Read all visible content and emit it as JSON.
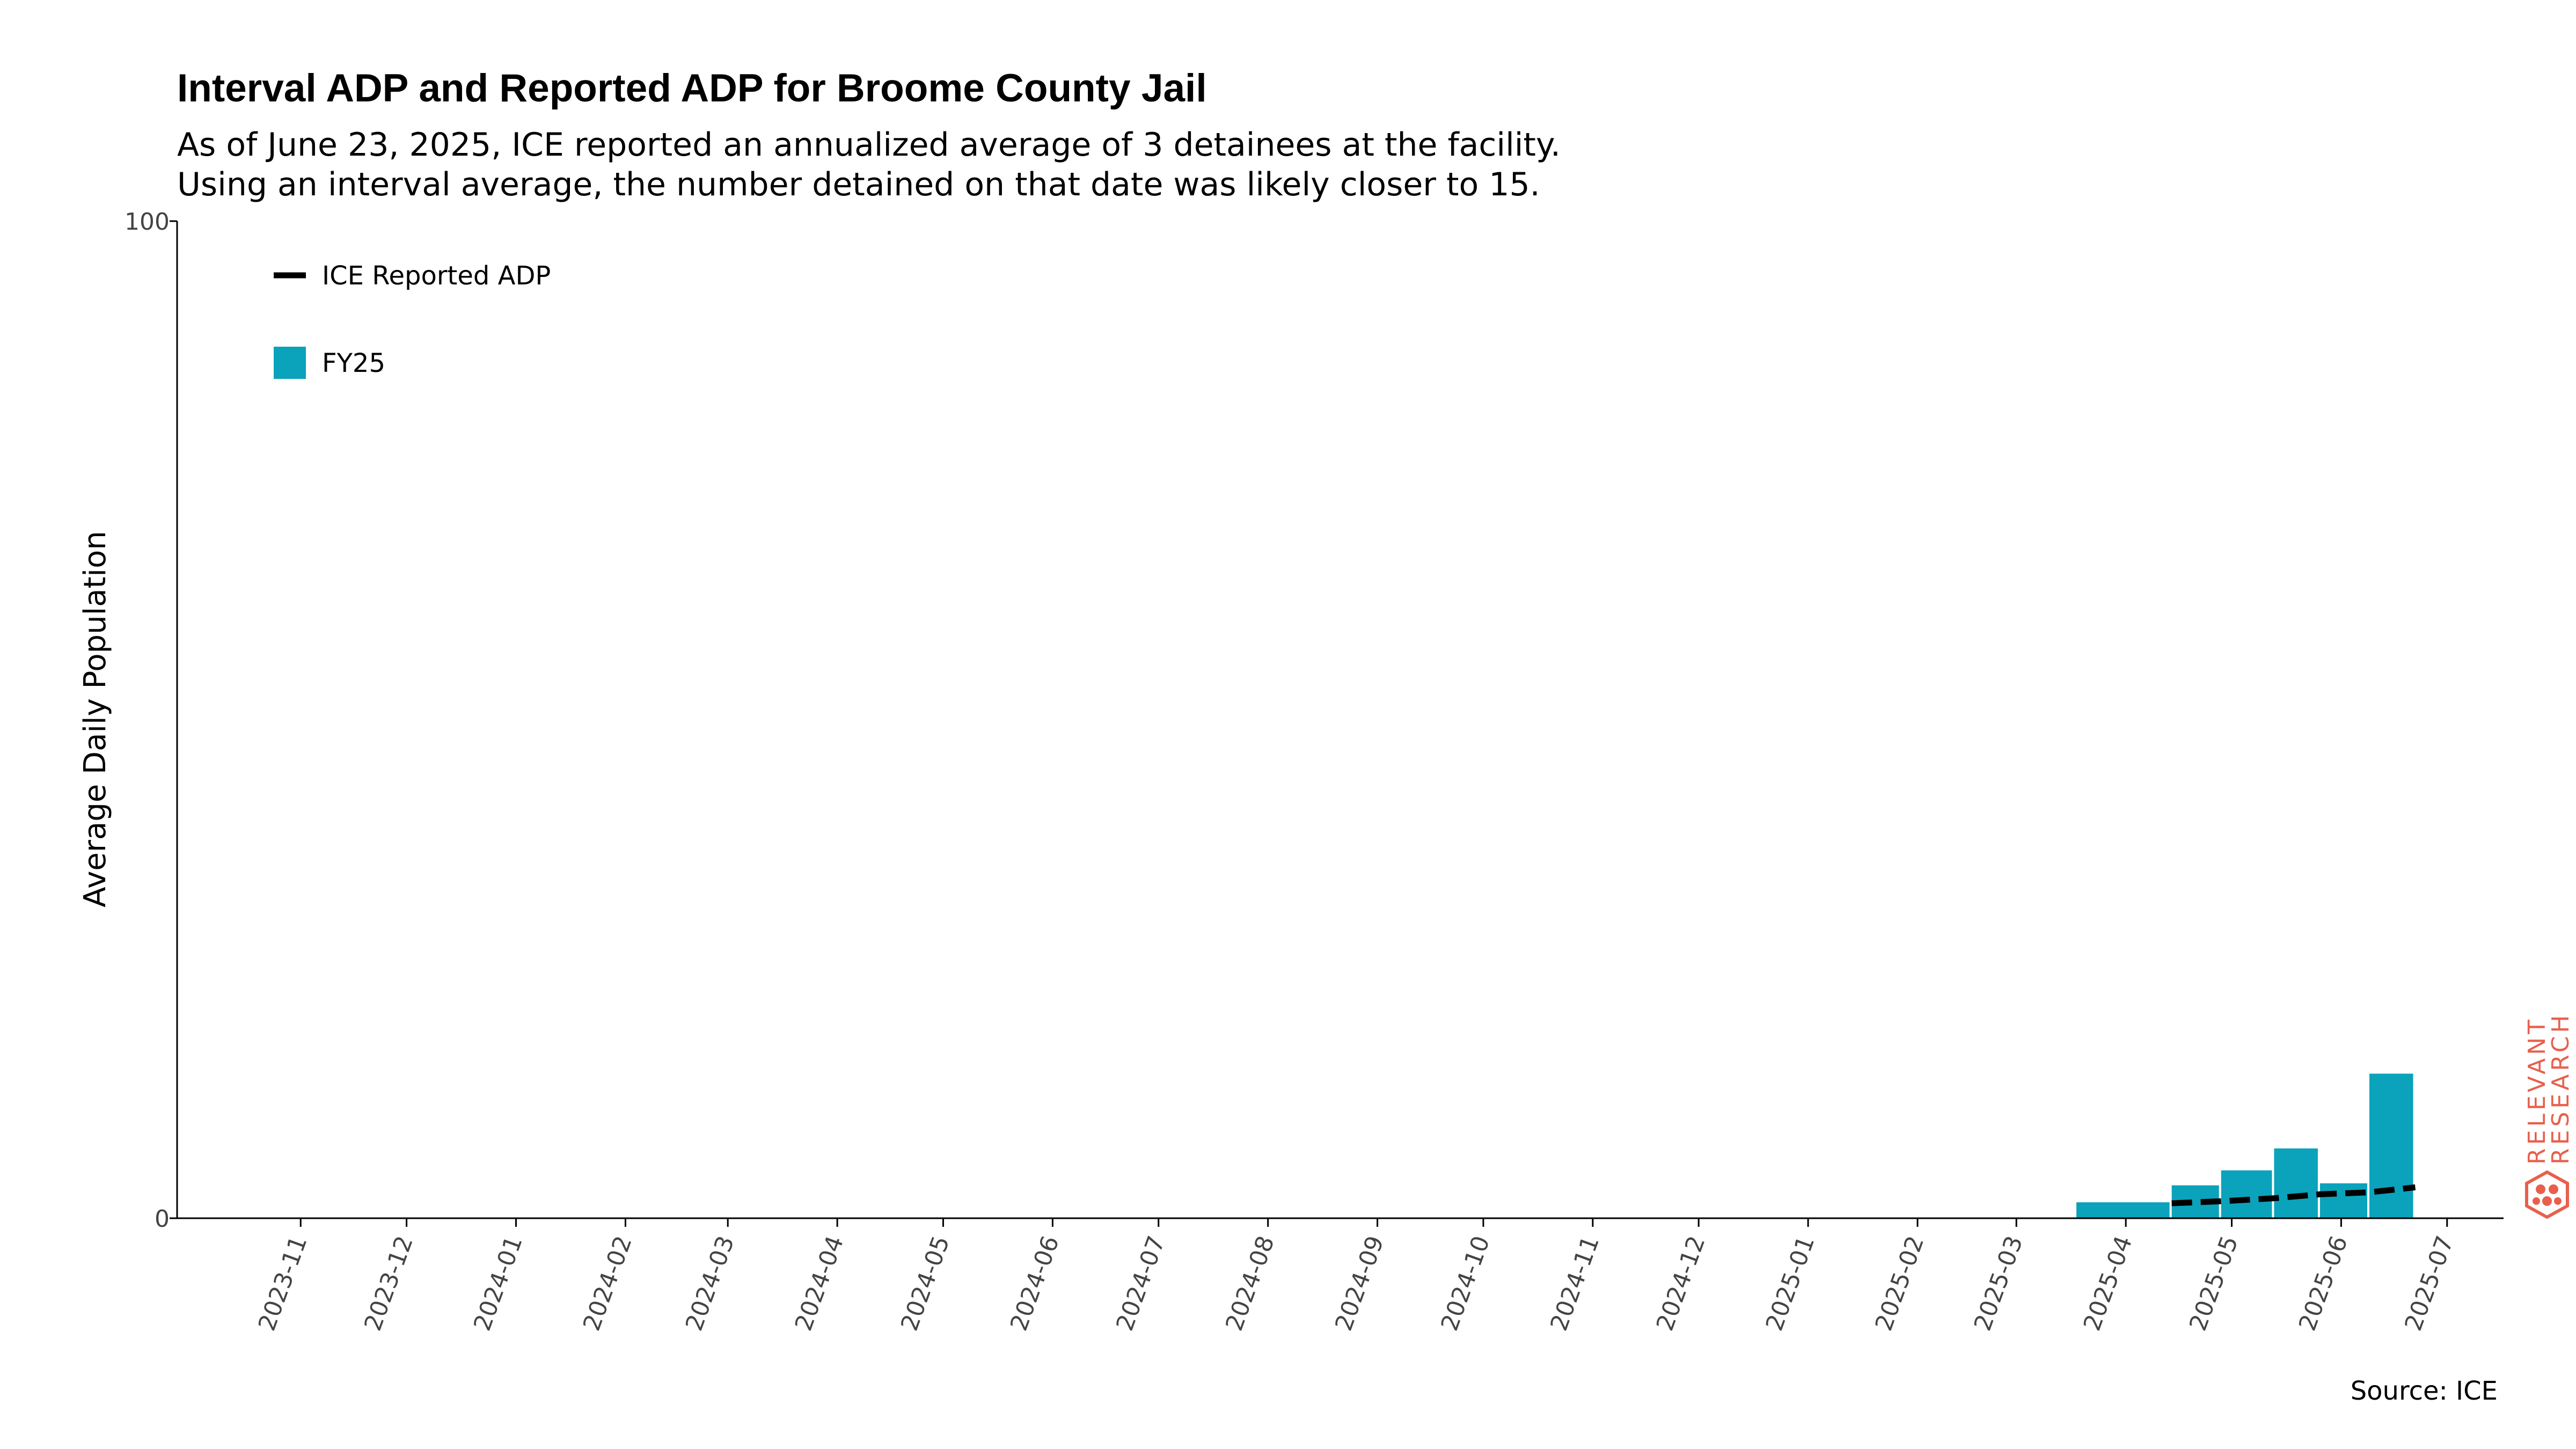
{
  "header": {
    "title": "Interval ADP and Reported ADP for Broome County Jail",
    "subtitle_lines": [
      "As of June 23, 2025, ICE reported an annualized average of 3 detainees at the facility.",
      "Using an interval average, the number detained on that date was likely closer to 15."
    ]
  },
  "footer": {
    "source": "Source: ICE"
  },
  "branding": {
    "logo_lines": [
      "RELEVANT",
      "RESEARCH"
    ],
    "logo_color": "#e8604c",
    "logo_icon": "hexagon-network-icon"
  },
  "colors": {
    "bar": "#0aa3bb",
    "line": "#000000",
    "axis": "#000000",
    "tick_text": "#444444"
  },
  "chart_data": {
    "type": "bar",
    "title": "Interval ADP and Reported ADP for Broome County Jail",
    "ylabel": "Average Daily Population",
    "xlabel": "",
    "ylim": [
      0,
      100
    ],
    "yticks": [
      0,
      100
    ],
    "x_range": [
      "2023-10-11",
      "2025-07-31"
    ],
    "x_tick_labels": [
      "2023-11",
      "2023-12",
      "2024-01",
      "2024-02",
      "2024-03",
      "2024-04",
      "2024-05",
      "2024-06",
      "2024-07",
      "2024-08",
      "2024-09",
      "2024-10",
      "2024-11",
      "2024-12",
      "2025-01",
      "2025-02",
      "2025-03",
      "2025-04",
      "2025-05",
      "2025-06",
      "2025-07"
    ],
    "grid": false,
    "legend": {
      "position": "top-left",
      "entries": [
        {
          "label": "ICE Reported ADP",
          "kind": "line-dashed"
        },
        {
          "label": "FY25",
          "kind": "bar"
        }
      ]
    },
    "series": [
      {
        "name": "FY25",
        "type": "bar",
        "bars": [
          {
            "start": "2025-04-01",
            "end": "2025-04-28",
            "value": 1.6
          },
          {
            "start": "2025-04-28",
            "end": "2025-05-12",
            "value": 3.3
          },
          {
            "start": "2025-05-12",
            "end": "2025-05-27",
            "value": 4.8
          },
          {
            "start": "2025-05-27",
            "end": "2025-06-09",
            "value": 7.0
          },
          {
            "start": "2025-06-09",
            "end": "2025-06-23",
            "value": 3.5
          },
          {
            "start": "2025-06-23",
            "end": "2025-07-06",
            "value": 14.5
          }
        ]
      },
      {
        "name": "ICE Reported ADP",
        "type": "line",
        "style": "dashed",
        "points": [
          {
            "x": "2025-04-28",
            "y": 1.5
          },
          {
            "x": "2025-05-12",
            "y": 1.7
          },
          {
            "x": "2025-05-27",
            "y": 2.0
          },
          {
            "x": "2025-06-09",
            "y": 2.4
          },
          {
            "x": "2025-06-23",
            "y": 2.6
          },
          {
            "x": "2025-07-06",
            "y": 3.1
          }
        ]
      }
    ]
  }
}
